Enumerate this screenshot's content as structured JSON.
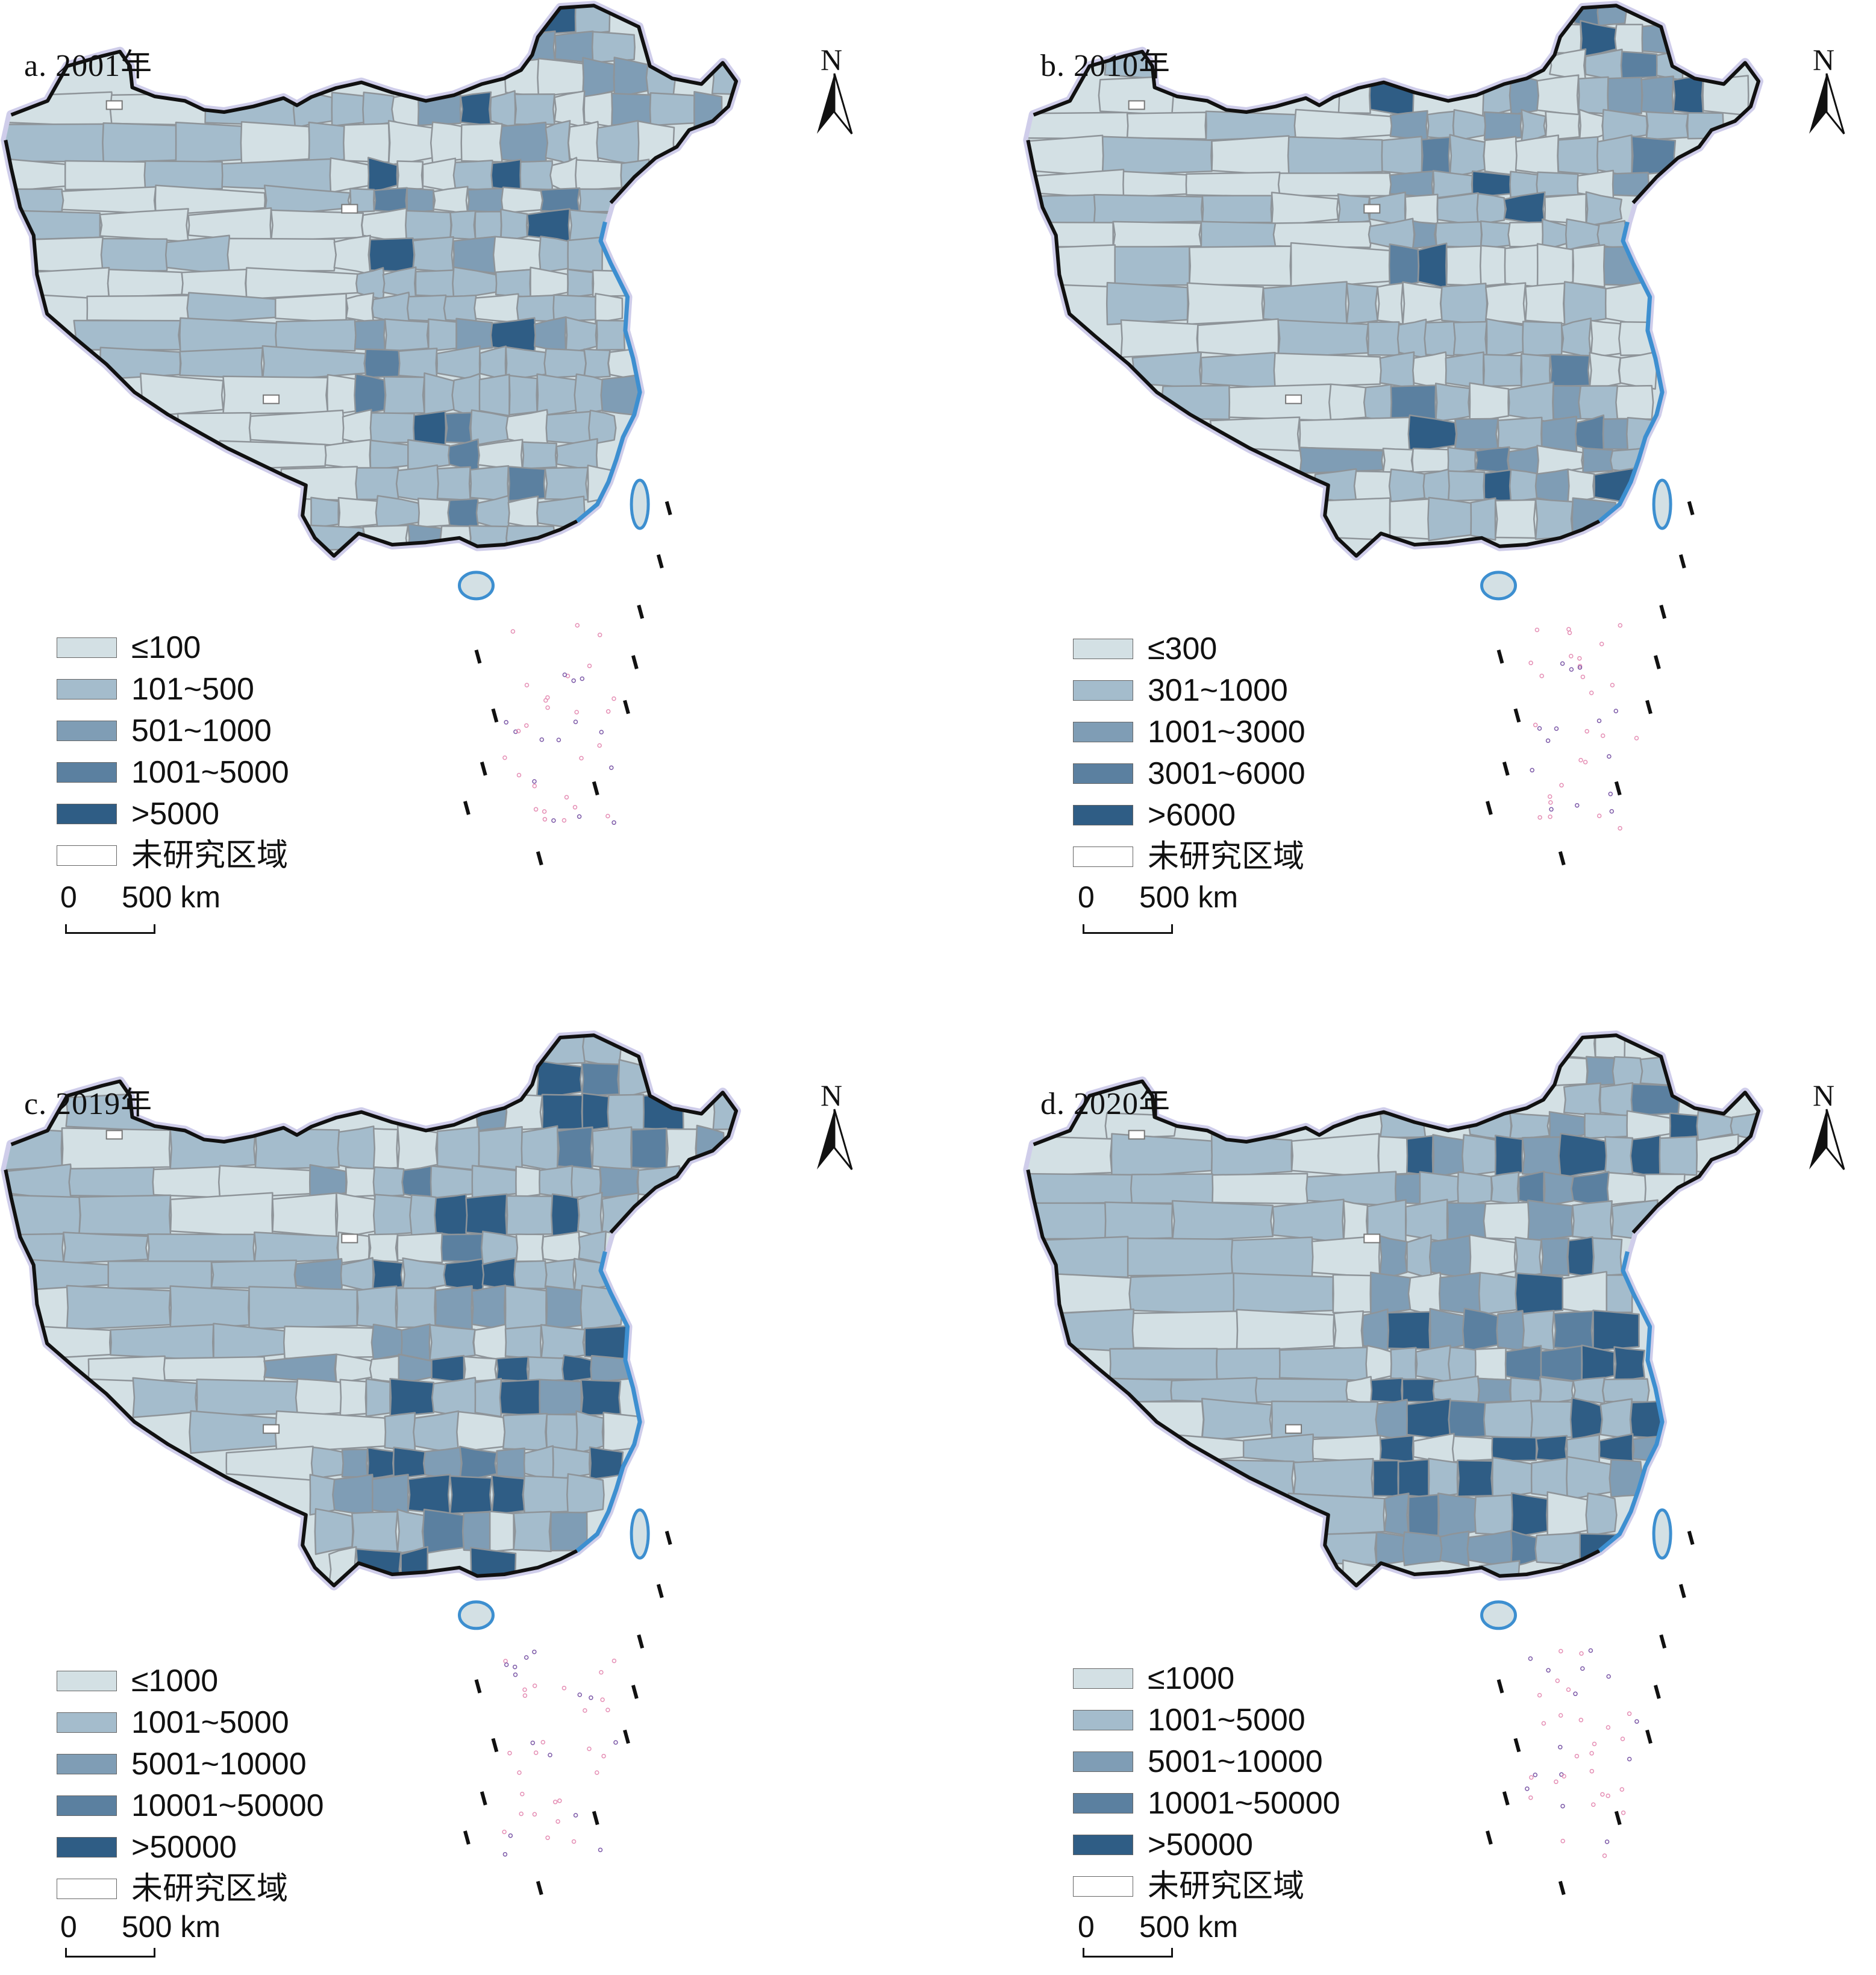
{
  "panels": [
    {
      "title": "a. 2001年",
      "north": "N",
      "legend": [
        {
          "label": "≤100",
          "color": "#d3e0e4"
        },
        {
          "label": "101~500",
          "color": "#a4bccc"
        },
        {
          "label": "501~1000",
          "color": "#7f9db5"
        },
        {
          "label": "1001~5000",
          "color": "#5b80a0"
        },
        {
          "label": ">5000",
          "color": "#2f5d85"
        },
        {
          "label": "未研究区域",
          "color": "#ffffff"
        }
      ],
      "scale": {
        "zero": "0",
        "distance": "500 km"
      }
    },
    {
      "title": "b. 2010年",
      "north": "N",
      "legend": [
        {
          "label": "≤300",
          "color": "#d3e0e4"
        },
        {
          "label": "301~1000",
          "color": "#a4bccc"
        },
        {
          "label": "1001~3000",
          "color": "#7f9db5"
        },
        {
          "label": "3001~6000",
          "color": "#5b80a0"
        },
        {
          "label": ">6000",
          "color": "#2f5d85"
        },
        {
          "label": "未研究区域",
          "color": "#ffffff"
        }
      ],
      "scale": {
        "zero": "0",
        "distance": "500 km"
      }
    },
    {
      "title": "c. 2019年",
      "north": "N",
      "legend": [
        {
          "label": "≤1000",
          "color": "#d3e0e4"
        },
        {
          "label": "1001~5000",
          "color": "#a4bccc"
        },
        {
          "label": "5001~10000",
          "color": "#7f9db5"
        },
        {
          "label": "10001~50000",
          "color": "#5b80a0"
        },
        {
          "label": ">50000",
          "color": "#2f5d85"
        },
        {
          "label": "未研究区域",
          "color": "#ffffff"
        }
      ],
      "scale": {
        "zero": "0",
        "distance": "500 km"
      }
    },
    {
      "title": "d. 2020年",
      "north": "N",
      "legend": [
        {
          "label": "≤1000",
          "color": "#d3e0e4"
        },
        {
          "label": "1001~5000",
          "color": "#a4bccc"
        },
        {
          "label": "5001~10000",
          "color": "#7f9db5"
        },
        {
          "label": "10001~50000",
          "color": "#5b80a0"
        },
        {
          "label": ">50000",
          "color": "#2f5d85"
        },
        {
          "label": "未研究区域",
          "color": "#ffffff"
        }
      ],
      "scale": {
        "zero": "0",
        "distance": "500 km"
      }
    }
  ]
}
